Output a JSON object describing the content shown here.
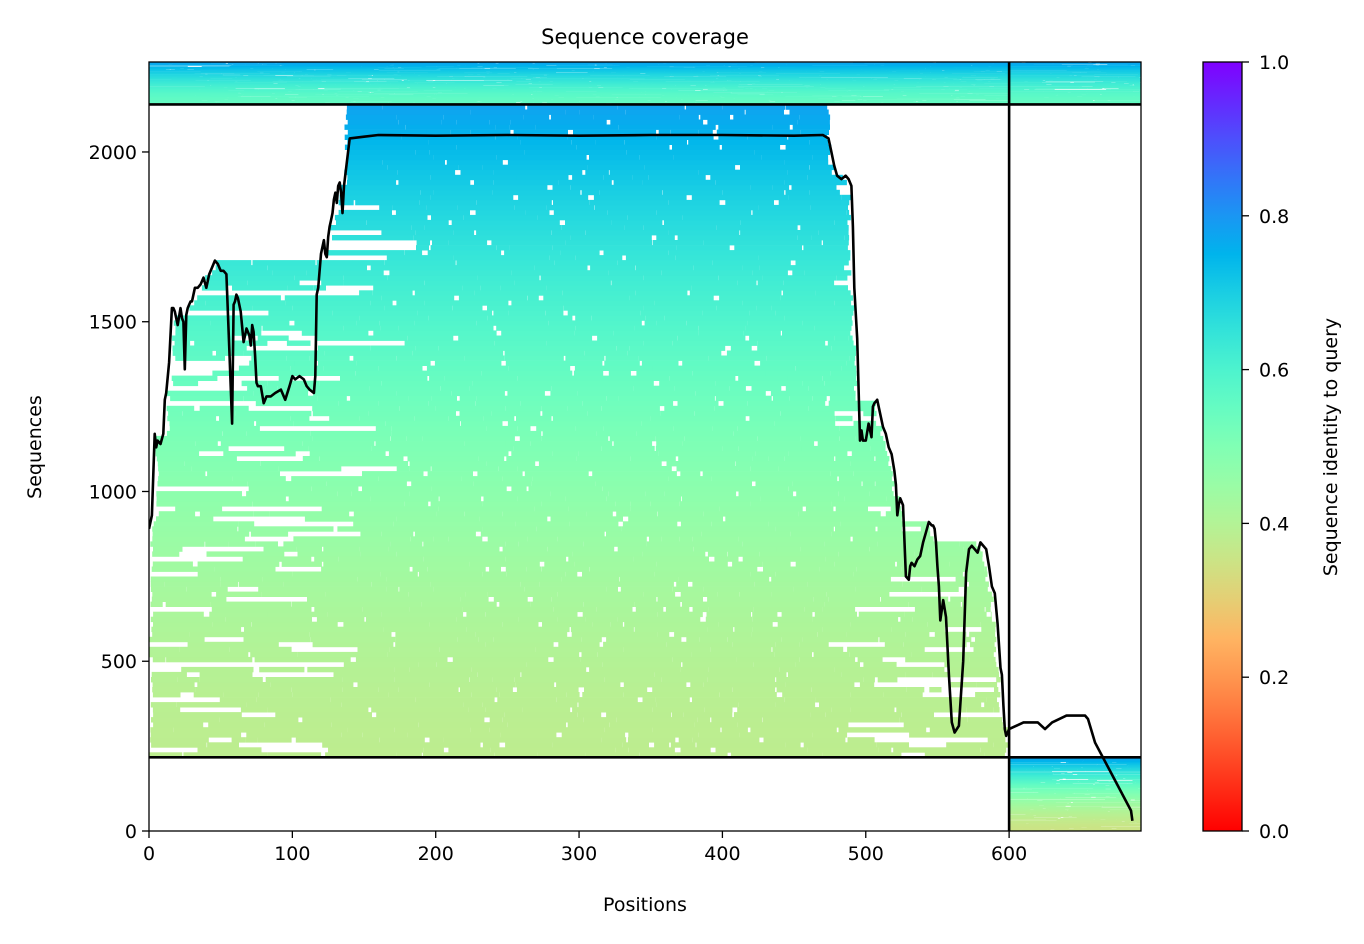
{
  "chart_data": {
    "type": "heatmap",
    "title": "Sequence coverage",
    "xlabel": "Positions",
    "ylabel": "Sequences",
    "xlim": [
      0,
      692
    ],
    "ylim": [
      0,
      2265
    ],
    "x_ticks": [
      0,
      100,
      200,
      300,
      400,
      500,
      600
    ],
    "y_ticks": [
      0,
      500,
      1000,
      1500,
      2000
    ],
    "grid": false,
    "colorbar": {
      "label": "Sequence identity to query",
      "range": [
        0,
        1
      ],
      "ticks": [
        "0.0",
        "0.2",
        "0.4",
        "0.6",
        "0.8",
        "1.0"
      ],
      "colormap": "rainbow_r"
    },
    "blocks": [
      {
        "name": "chain_1_paired_top",
        "x": [
          0,
          600
        ],
        "y": [
          2140,
          2265
        ],
        "identity_top": 0.78,
        "identity_bottom": 0.55,
        "fill": 0.9
      },
      {
        "name": "chain_2_paired_top",
        "x": [
          600,
          692
        ],
        "y": [
          2140,
          2265
        ],
        "identity_top": 0.78,
        "identity_bottom": 0.55,
        "fill": 0.9
      },
      {
        "name": "chain_1_unpaired",
        "x": [
          0,
          600
        ],
        "y": [
          217,
          2140
        ],
        "identity_top": 0.78,
        "identity_bottom": 0.38,
        "fill": 0.85
      },
      {
        "name": "chain_2_unpaired",
        "x": [
          600,
          692
        ],
        "y": [
          0,
          217
        ],
        "identity_top": 0.78,
        "identity_bottom": 0.35,
        "fill": 0.9
      }
    ],
    "separators": {
      "vertical_x": 600,
      "horizontal_y": [
        217,
        2140
      ]
    },
    "coverage_line": {
      "x": [
        0,
        2,
        3,
        4,
        5,
        6,
        8,
        10,
        11,
        12,
        14,
        16,
        17,
        18,
        20,
        22,
        23,
        24,
        25,
        26,
        27,
        28,
        29,
        30,
        32,
        34,
        36,
        38,
        40,
        42,
        44,
        46,
        48,
        50,
        52,
        54,
        56,
        58,
        59,
        60,
        61,
        62,
        64,
        66,
        68,
        70,
        71,
        72,
        73,
        74,
        75,
        76,
        78,
        80,
        82,
        85,
        88,
        92,
        95,
        98,
        100,
        102,
        105,
        108,
        110,
        112,
        115,
        116,
        117,
        118,
        120,
        122,
        123,
        124,
        125,
        126,
        127,
        128,
        129,
        130,
        131,
        132,
        133,
        134,
        135,
        136,
        140,
        150,
        160,
        200,
        250,
        300,
        350,
        400,
        450,
        470,
        474,
        476,
        478,
        480,
        483,
        486,
        488,
        490,
        491,
        492,
        494,
        496,
        497,
        498,
        500,
        502,
        504,
        505,
        506,
        508,
        510,
        512,
        514,
        516,
        518,
        520,
        521,
        522,
        523,
        524,
        526,
        528,
        530,
        531,
        532,
        534,
        536,
        538,
        540,
        542,
        544,
        546,
        547,
        548,
        549,
        550,
        551,
        552,
        554,
        556,
        558,
        560,
        562,
        565,
        568,
        570,
        572,
        574,
        576,
        578,
        580,
        584,
        586,
        588,
        590,
        592,
        594,
        595,
        596,
        597,
        598,
        599,
        600,
        610,
        620,
        625,
        630,
        640,
        645,
        650,
        652,
        653,
        655,
        660,
        670,
        680,
        685,
        686,
        687,
        688,
        689,
        690,
        691,
        692
      ],
      "y": [
        890,
        930,
        1050,
        1170,
        1130,
        1150,
        1140,
        1170,
        1270,
        1290,
        1380,
        1540,
        1540,
        1530,
        1490,
        1540,
        1510,
        1500,
        1360,
        1520,
        1540,
        1550,
        1560,
        1560,
        1600,
        1600,
        1610,
        1630,
        1600,
        1640,
        1660,
        1680,
        1670,
        1650,
        1650,
        1640,
        1420,
        1200,
        1550,
        1560,
        1580,
        1570,
        1530,
        1440,
        1480,
        1460,
        1430,
        1490,
        1470,
        1400,
        1320,
        1310,
        1310,
        1260,
        1280,
        1280,
        1290,
        1300,
        1270,
        1310,
        1340,
        1330,
        1340,
        1330,
        1310,
        1300,
        1290,
        1340,
        1580,
        1600,
        1700,
        1740,
        1700,
        1690,
        1750,
        1780,
        1800,
        1820,
        1860,
        1880,
        1850,
        1900,
        1910,
        1880,
        1820,
        1900,
        2040,
        2045,
        2050,
        2048,
        2050,
        2048,
        2050,
        2050,
        2048,
        2050,
        2040,
        2000,
        1960,
        1930,
        1920,
        1930,
        1920,
        1900,
        1780,
        1600,
        1450,
        1150,
        1180,
        1150,
        1150,
        1200,
        1160,
        1250,
        1260,
        1270,
        1230,
        1190,
        1170,
        1130,
        1110,
        1060,
        1020,
        930,
        960,
        980,
        960,
        750,
        740,
        780,
        790,
        780,
        800,
        810,
        850,
        880,
        910,
        900,
        900,
        890,
        850,
        780,
        720,
        620,
        680,
        630,
        460,
        320,
        290,
        310,
        500,
        760,
        830,
        840,
        830,
        820,
        850,
        830,
        780,
        720,
        700,
        610,
        480,
        460,
        370,
        300,
        280,
        290,
        300,
        320,
        320,
        300,
        320,
        340,
        340,
        340,
        340,
        340,
        330,
        260,
        180,
        100,
        60,
        30
      ]
    }
  }
}
